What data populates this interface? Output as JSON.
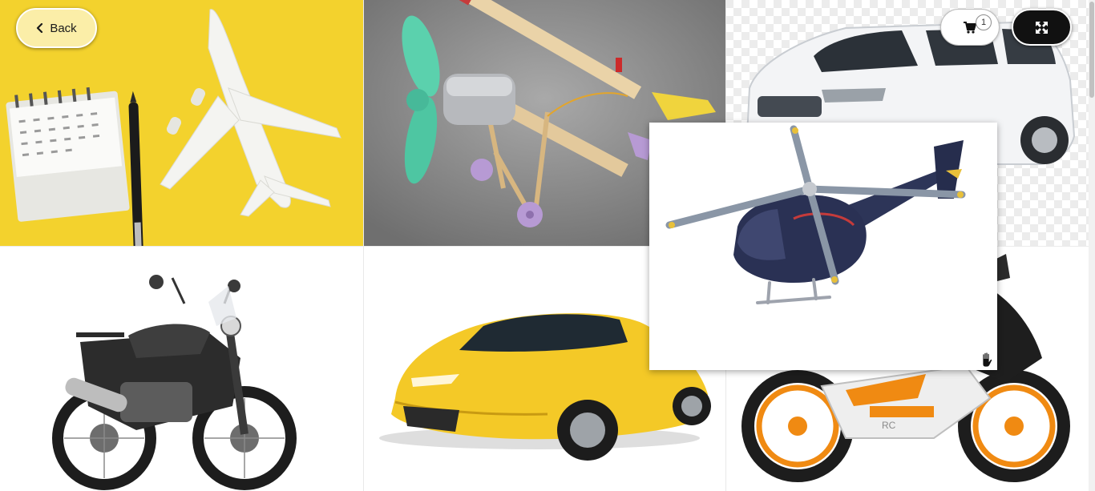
{
  "toolbar": {
    "back_label": "Back",
    "cart_count": "1",
    "cart_icon": "cart-icon",
    "fullscreen_icon": "expand-icon"
  },
  "gallery": {
    "tiles": [
      {
        "subject": "airliner-model-on-yellow",
        "icon": "airplane-image"
      },
      {
        "subject": "popsicle-stick-biplane",
        "icon": "biplane-image"
      },
      {
        "subject": "white-mpv-car",
        "icon": "mpv-car-image"
      },
      {
        "subject": "adventure-motorcycle",
        "icon": "motorcycle-image"
      },
      {
        "subject": "yellow-supercar",
        "icon": "sports-car-image"
      },
      {
        "subject": "orange-sport-bike",
        "icon": "sport-bike-image"
      }
    ]
  },
  "popup": {
    "subject": "navy-helicopter",
    "icon": "helicopter-image"
  },
  "colors": {
    "back_button_bg": "#fbeea8",
    "fullscreen_bg": "#111111",
    "tile1_bg": "#f2cf27"
  }
}
